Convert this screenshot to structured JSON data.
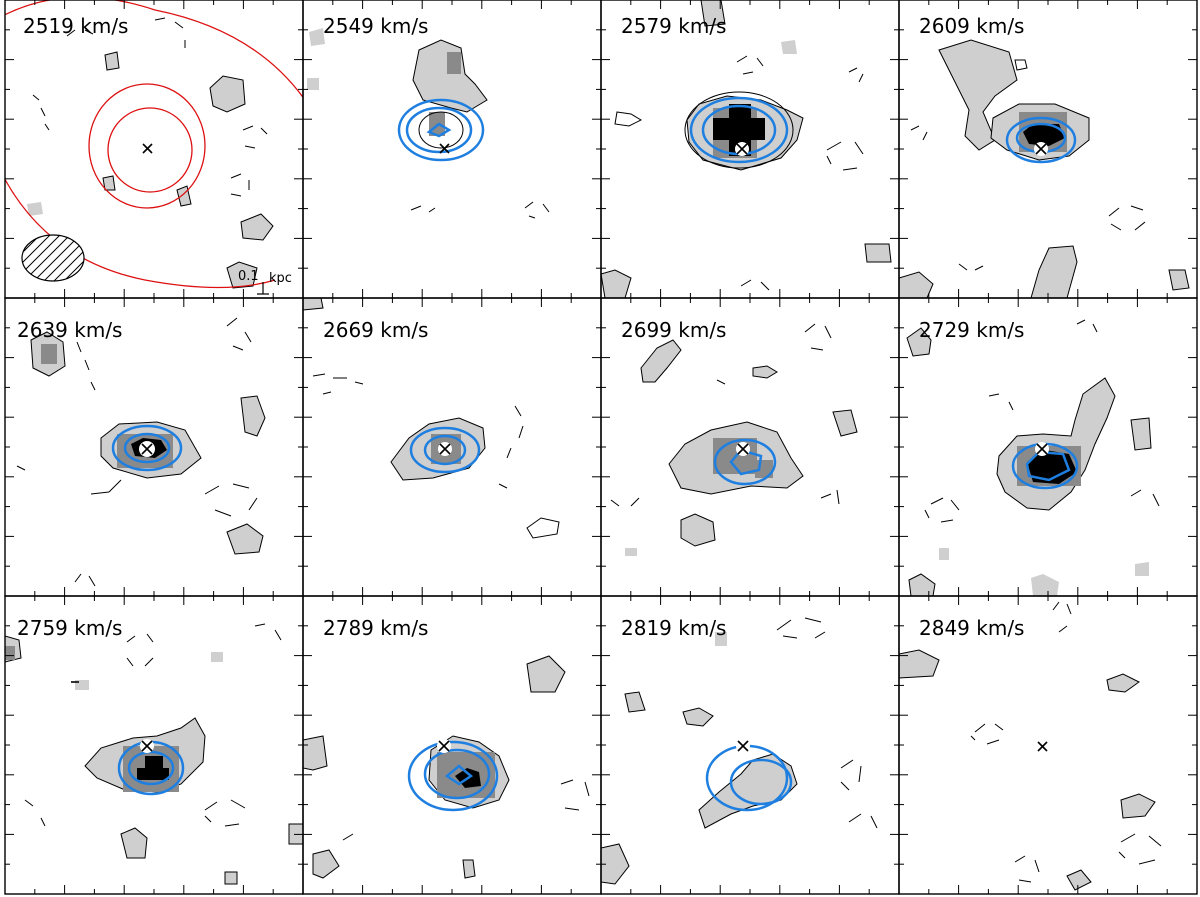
{
  "figure": {
    "panels": [
      {
        "label": "2519 km/s"
      },
      {
        "label": "2549 km/s"
      },
      {
        "label": "2579 km/s"
      },
      {
        "label": "2609 km/s"
      },
      {
        "label": "2639 km/s"
      },
      {
        "label": "2669 km/s"
      },
      {
        "label": "2699 km/s"
      },
      {
        "label": "2729 km/s"
      },
      {
        "label": "2759 km/s"
      },
      {
        "label": "2789 km/s"
      },
      {
        "label": "2819 km/s"
      },
      {
        "label": "2849 km/s"
      }
    ],
    "scale_bar": {
      "value": "0.1",
      "unit": "kpc"
    },
    "colors": {
      "frame": "#000000",
      "positive_contour": "#000000",
      "negative_contour": "#000000",
      "blue_contour": "#1e7fe0",
      "red_contour": "#dd1111",
      "gray_light": "#cfcfcf",
      "gray_mid": "#8a8a8a",
      "gray_dark": "#000000",
      "marker": "#000000"
    }
  }
}
